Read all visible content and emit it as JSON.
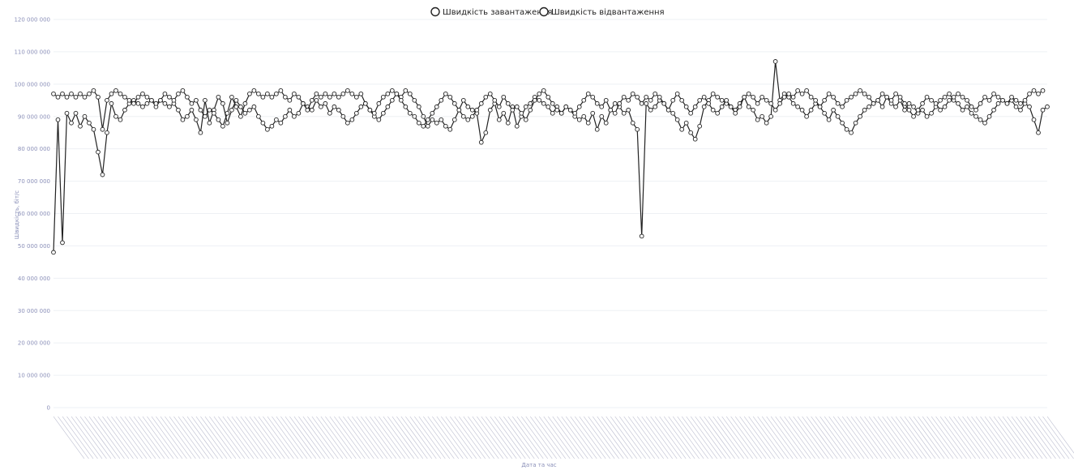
{
  "chart_data": {
    "type": "line",
    "title": "",
    "xlabel": "Дата та час",
    "ylabel": "Швидкість, біт/с",
    "ylim": [
      0,
      120000000
    ],
    "yticks": [
      "0",
      "10 000 000",
      "20 000 000",
      "30 000 000",
      "40 000 000",
      "50 000 000",
      "60 000 000",
      "70 000 000",
      "80 000 000",
      "90 000 000",
      "100 000 000",
      "110 000 000",
      "120 000 000"
    ],
    "ytick_values": [
      0,
      10000000,
      20000000,
      30000000,
      40000000,
      50000000,
      60000000,
      70000000,
      80000000,
      90000000,
      100000000,
      110000000,
      120000000
    ],
    "grid": true,
    "legend_position": "top-center",
    "series": [
      {
        "name": "Швидкість завантаження",
        "color": "#222222",
        "values": [
          48000000,
          89000000,
          51000000,
          91000000,
          88000000,
          91000000,
          87000000,
          90000000,
          88000000,
          86000000,
          79000000,
          72000000,
          85000000,
          94000000,
          90000000,
          89000000,
          92000000,
          94000000,
          95000000,
          94000000,
          93000000,
          94000000,
          95000000,
          93000000,
          95000000,
          94000000,
          93000000,
          94000000,
          92000000,
          89000000,
          90000000,
          92000000,
          89000000,
          85000000,
          95000000,
          88000000,
          92000000,
          96000000,
          94000000,
          88000000,
          92000000,
          95000000,
          93000000,
          91000000,
          92000000,
          93000000,
          90000000,
          88000000,
          86000000,
          87000000,
          89000000,
          88000000,
          90000000,
          92000000,
          90000000,
          91000000,
          94000000,
          93000000,
          92000000,
          95000000,
          93000000,
          94000000,
          91000000,
          93000000,
          92000000,
          90000000,
          88000000,
          89000000,
          91000000,
          93000000,
          94000000,
          92000000,
          90000000,
          89000000,
          91000000,
          93000000,
          95000000,
          97000000,
          96000000,
          98000000,
          97000000,
          95000000,
          93000000,
          90000000,
          87000000,
          89000000,
          88000000,
          89000000,
          87000000,
          86000000,
          89000000,
          92000000,
          95000000,
          93000000,
          92000000,
          91000000,
          82000000,
          85000000,
          92000000,
          94000000,
          89000000,
          91000000,
          88000000,
          93000000,
          87000000,
          90000000,
          93000000,
          94000000,
          96000000,
          95000000,
          94000000,
          93000000,
          91000000,
          93000000,
          91000000,
          93000000,
          92000000,
          90000000,
          89000000,
          90000000,
          88000000,
          91000000,
          86000000,
          90000000,
          88000000,
          92000000,
          94000000,
          93000000,
          91000000,
          92000000,
          88000000,
          86000000,
          53000000,
          94000000,
          92000000,
          93000000,
          95000000,
          94000000,
          92000000,
          91000000,
          89000000,
          86000000,
          88000000,
          85000000,
          83000000,
          87000000,
          93000000,
          95000000,
          97000000,
          96000000,
          95000000,
          94000000,
          93000000,
          92000000,
          94000000,
          96000000,
          93000000,
          92000000,
          89000000,
          90000000,
          88000000,
          90000000,
          107000000,
          95000000,
          97000000,
          96000000,
          94000000,
          93000000,
          92000000,
          90000000,
          92000000,
          94000000,
          93000000,
          91000000,
          89000000,
          92000000,
          90000000,
          88000000,
          86000000,
          85000000,
          88000000,
          90000000,
          92000000,
          93000000,
          94000000,
          95000000,
          93000000,
          96000000,
          94000000,
          93000000,
          95000000,
          92000000,
          94000000,
          93000000,
          91000000,
          92000000,
          90000000,
          91000000,
          93000000,
          95000000,
          96000000,
          97000000,
          95000000,
          94000000,
          92000000,
          93000000,
          91000000,
          90000000,
          89000000,
          88000000,
          90000000,
          92000000,
          94000000,
          95000000,
          94000000,
          95000000,
          93000000,
          92000000,
          94000000,
          93000000,
          89000000,
          85000000,
          92000000,
          93000000
        ]
      },
      {
        "name": "Швидкість відвантаження",
        "color": "#222222",
        "values": [
          97000000,
          96000000,
          97000000,
          96000000,
          97000000,
          96000000,
          97000000,
          96000000,
          97000000,
          98000000,
          96000000,
          86000000,
          95000000,
          97000000,
          98000000,
          97000000,
          96000000,
          95000000,
          94000000,
          96000000,
          97000000,
          96000000,
          95000000,
          94000000,
          95000000,
          97000000,
          96000000,
          95000000,
          97000000,
          98000000,
          96000000,
          94000000,
          95000000,
          92000000,
          90000000,
          92000000,
          91000000,
          89000000,
          87000000,
          91000000,
          96000000,
          93000000,
          90000000,
          94000000,
          97000000,
          98000000,
          97000000,
          96000000,
          97000000,
          96000000,
          97000000,
          98000000,
          96000000,
          95000000,
          97000000,
          96000000,
          94000000,
          92000000,
          95000000,
          97000000,
          96000000,
          97000000,
          96000000,
          97000000,
          96000000,
          97000000,
          98000000,
          97000000,
          96000000,
          97000000,
          94000000,
          92000000,
          91000000,
          94000000,
          96000000,
          97000000,
          98000000,
          97000000,
          95000000,
          93000000,
          91000000,
          90000000,
          88000000,
          87000000,
          89000000,
          91000000,
          93000000,
          95000000,
          97000000,
          96000000,
          94000000,
          92000000,
          90000000,
          89000000,
          90000000,
          92000000,
          94000000,
          96000000,
          97000000,
          95000000,
          93000000,
          96000000,
          94000000,
          92000000,
          93000000,
          91000000,
          89000000,
          92000000,
          95000000,
          97000000,
          98000000,
          96000000,
          94000000,
          92000000,
          91000000,
          93000000,
          92000000,
          91000000,
          93000000,
          95000000,
          97000000,
          96000000,
          94000000,
          93000000,
          95000000,
          92000000,
          91000000,
          94000000,
          96000000,
          95000000,
          97000000,
          96000000,
          94000000,
          96000000,
          95000000,
          97000000,
          96000000,
          94000000,
          92000000,
          95000000,
          97000000,
          95000000,
          93000000,
          91000000,
          93000000,
          95000000,
          96000000,
          94000000,
          92000000,
          91000000,
          93000000,
          95000000,
          93000000,
          91000000,
          93000000,
          96000000,
          97000000,
          96000000,
          94000000,
          96000000,
          95000000,
          94000000,
          92000000,
          94000000,
          96000000,
          97000000,
          96000000,
          98000000,
          97000000,
          98000000,
          96000000,
          95000000,
          93000000,
          95000000,
          97000000,
          96000000,
          94000000,
          93000000,
          95000000,
          96000000,
          97000000,
          98000000,
          97000000,
          96000000,
          94000000,
          95000000,
          97000000,
          96000000,
          95000000,
          97000000,
          96000000,
          94000000,
          92000000,
          90000000,
          92000000,
          94000000,
          96000000,
          95000000,
          94000000,
          92000000,
          93000000,
          95000000,
          96000000,
          97000000,
          96000000,
          95000000,
          93000000,
          92000000,
          94000000,
          96000000,
          95000000,
          97000000,
          96000000,
          95000000,
          94000000,
          96000000,
          95000000,
          94000000,
          95000000,
          97000000,
          98000000,
          97000000,
          98000000
        ]
      }
    ]
  }
}
